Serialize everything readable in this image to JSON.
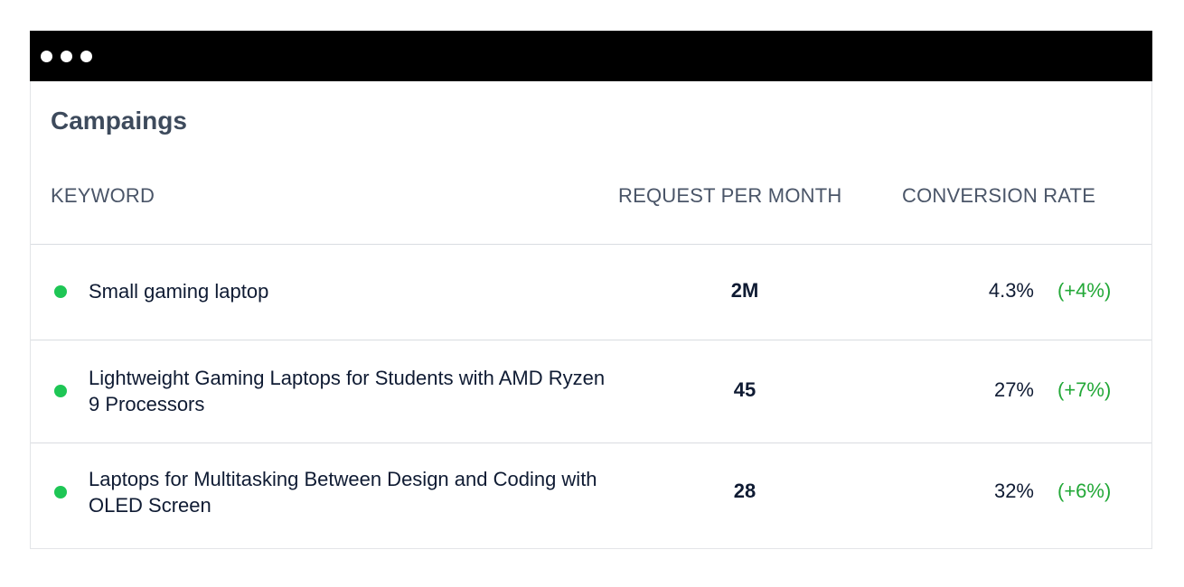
{
  "window": {
    "controls": [
      "dot",
      "dot",
      "dot"
    ]
  },
  "card": {
    "title": "Campaings"
  },
  "columns": {
    "keyword": "KEYWORD",
    "requests": "REQUEST PER MONTH",
    "conversion": "CONVERSION RATE"
  },
  "colors": {
    "titlebar": "#000000",
    "bullet": "#1ec655",
    "delta": "#23a838",
    "title": "#3d4a5c"
  },
  "rows": [
    {
      "status_icon": "green-dot-icon",
      "keyword": "Small gaming laptop",
      "requests": "2M",
      "rate": "4.3%",
      "delta": "(+4%)"
    },
    {
      "status_icon": "green-dot-icon",
      "keyword": "Lightweight Gaming Laptops for Students with AMD Ryzen 9 Processors",
      "requests": "45",
      "rate": "27%",
      "delta": "(+7%)"
    },
    {
      "status_icon": "green-dot-icon",
      "keyword": "Laptops for Multitasking Between Design and Coding with OLED Screen",
      "requests": "28",
      "rate": "32%",
      "delta": "(+6%)"
    }
  ]
}
